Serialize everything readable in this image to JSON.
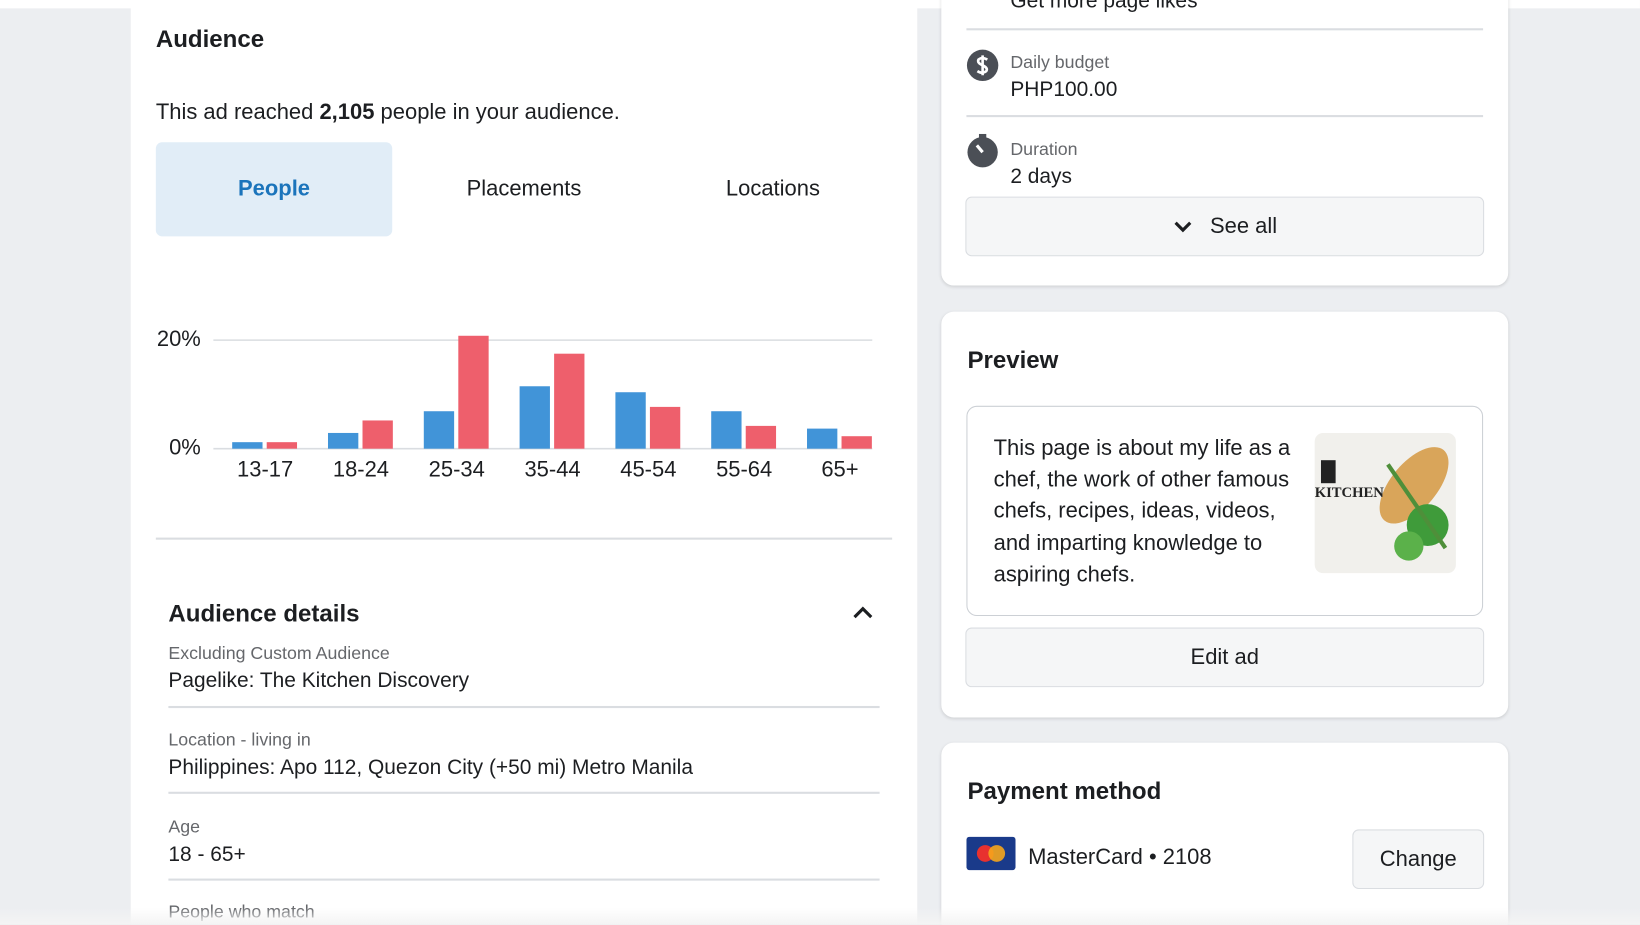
{
  "audience": {
    "title": "Audience",
    "reach_before": "This ad reached",
    "reach_count": "2,105",
    "reach_after": "people in your audience.",
    "tabs": [
      "People",
      "Placements",
      "Locations"
    ]
  },
  "chart_data": {
    "type": "bar",
    "categories": [
      "13-17",
      "18-24",
      "25-34",
      "35-44",
      "45-54",
      "55-64",
      "65+"
    ],
    "series": [
      {
        "color": "#4194d8",
        "values": [
          1.2,
          2.9,
          6.9,
          11.5,
          10.4,
          6.9,
          3.7
        ]
      },
      {
        "color": "#ee5f6c",
        "values": [
          1.2,
          5.2,
          20.8,
          17.5,
          7.7,
          4.2,
          2.3
        ]
      }
    ],
    "ylim": [
      0,
      21
    ],
    "yticks": [
      {
        "value": 0,
        "label": "0%"
      },
      {
        "value": 20,
        "label": "20%"
      }
    ],
    "grid": true
  },
  "details": {
    "title": "Audience details",
    "items": [
      {
        "label": "Excluding Custom Audience",
        "value": "Pagelike: The Kitchen Discovery"
      },
      {
        "label": "Location - living in",
        "value": "Philippines: Apo 112, Quezon City (+50 mi) Metro Manila"
      },
      {
        "label": "Age",
        "value": "18 - 65+"
      }
    ],
    "more": "People who match"
  },
  "summary": {
    "goal": "Get more page likes",
    "budget": {
      "label": "Daily budget",
      "value": "PHP100.00"
    },
    "duration": {
      "label": "Duration",
      "value": "2 days"
    },
    "see_all": "See all"
  },
  "preview": {
    "title": "Preview",
    "text": "This page is about my life as a chef, the work of other famous chefs, recipes, ideas, videos, and imparting knowledge to aspiring chefs.",
    "image_text": "KITCHEN",
    "edit": "Edit ad"
  },
  "payment": {
    "title": "Payment method",
    "card": "MasterCard • 2108",
    "change": "Change"
  }
}
